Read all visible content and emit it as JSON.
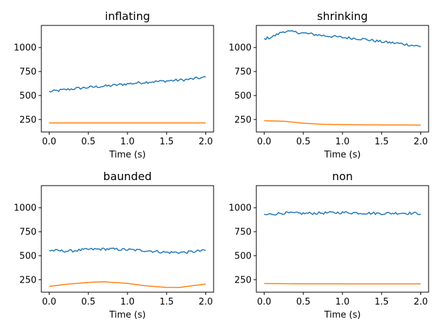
{
  "chart_data": [
    {
      "type": "line",
      "title": "inflating",
      "xlabel": "Time (s)",
      "ylabel": "",
      "xlim": [
        -0.1,
        2.1
      ],
      "ylim": [
        120,
        1230
      ],
      "xticks": [
        0.0,
        0.5,
        1.0,
        1.5,
        2.0
      ],
      "xtick_labels": [
        "0.0",
        "0.5",
        "1.0",
        "1.5",
        "2.0"
      ],
      "yticks": [
        250,
        500,
        750,
        1000
      ],
      "ytick_labels": [
        "250",
        "500",
        "750",
        "1000"
      ],
      "grid": false,
      "series": [
        {
          "color": "#1f77b4",
          "x": [
            0.0,
            0.25,
            0.5,
            0.75,
            1.0,
            1.25,
            1.5,
            1.75,
            2.0
          ],
          "values": [
            540,
            565,
            585,
            600,
            622,
            640,
            652,
            665,
            690
          ]
        },
        {
          "color": "#ff7f0e",
          "x": [
            0.0,
            0.5,
            1.0,
            1.5,
            2.0
          ],
          "values": [
            215,
            215,
            215,
            215,
            215
          ]
        }
      ]
    },
    {
      "type": "line",
      "title": "shrinking",
      "xlabel": "Time (s)",
      "ylabel": "",
      "xlim": [
        -0.1,
        2.1
      ],
      "ylim": [
        120,
        1230
      ],
      "xticks": [
        0.0,
        0.5,
        1.0,
        1.5,
        2.0
      ],
      "xtick_labels": [
        "0.0",
        "0.5",
        "1.0",
        "1.5",
        "2.0"
      ],
      "yticks": [
        250,
        500,
        750,
        1000
      ],
      "ytick_labels": [
        "250",
        "500",
        "750",
        "1000"
      ],
      "grid": false,
      "series": [
        {
          "color": "#1f77b4",
          "x": [
            0.0,
            0.1,
            0.25,
            0.4,
            0.5,
            0.75,
            1.0,
            1.25,
            1.5,
            1.75,
            2.0
          ],
          "values": [
            1090,
            1110,
            1170,
            1160,
            1150,
            1125,
            1105,
            1090,
            1060,
            1040,
            1010
          ]
        },
        {
          "color": "#ff7f0e",
          "x": [
            0.0,
            0.25,
            0.5,
            0.75,
            1.0,
            1.5,
            2.0
          ],
          "values": [
            238,
            232,
            212,
            200,
            196,
            194,
            192
          ]
        }
      ]
    },
    {
      "type": "line",
      "title": "baunded",
      "xlabel": "Time (s)",
      "ylabel": "",
      "xlim": [
        -0.1,
        2.1
      ],
      "ylim": [
        120,
        1230
      ],
      "xticks": [
        0.0,
        0.5,
        1.0,
        1.5,
        2.0
      ],
      "xtick_labels": [
        "0.0",
        "0.5",
        "1.0",
        "1.5",
        "2.0"
      ],
      "yticks": [
        250,
        500,
        750,
        1000
      ],
      "ytick_labels": [
        "250",
        "500",
        "750",
        "1000"
      ],
      "grid": false,
      "series": [
        {
          "color": "#1f77b4",
          "x": [
            0.0,
            0.25,
            0.5,
            0.75,
            1.0,
            1.25,
            1.5,
            1.75,
            2.0
          ],
          "values": [
            555,
            548,
            565,
            570,
            562,
            553,
            535,
            535,
            555
          ]
        },
        {
          "color": "#ff7f0e",
          "x": [
            0.0,
            0.25,
            0.5,
            0.7,
            1.0,
            1.25,
            1.5,
            1.65,
            2.0
          ],
          "values": [
            180,
            205,
            222,
            228,
            212,
            185,
            170,
            168,
            205
          ]
        }
      ]
    },
    {
      "type": "line",
      "title": "non",
      "xlabel": "Time (s)",
      "ylabel": "",
      "xlim": [
        -0.1,
        2.1
      ],
      "ylim": [
        120,
        1230
      ],
      "xticks": [
        0.0,
        0.5,
        1.0,
        1.5,
        2.0
      ],
      "xtick_labels": [
        "0.0",
        "0.5",
        "1.0",
        "1.5",
        "2.0"
      ],
      "yticks": [
        250,
        500,
        750,
        1000
      ],
      "ytick_labels": [
        "250",
        "500",
        "750",
        "1000"
      ],
      "grid": false,
      "series": [
        {
          "color": "#1f77b4",
          "x": [
            0.0,
            0.25,
            0.5,
            0.75,
            1.0,
            1.25,
            1.5,
            1.75,
            2.0
          ],
          "values": [
            925,
            945,
            940,
            945,
            950,
            945,
            940,
            945,
            940
          ]
        },
        {
          "color": "#ff7f0e",
          "x": [
            0.0,
            0.5,
            1.0,
            1.5,
            2.0
          ],
          "values": [
            210,
            208,
            207,
            207,
            207
          ]
        }
      ]
    }
  ]
}
